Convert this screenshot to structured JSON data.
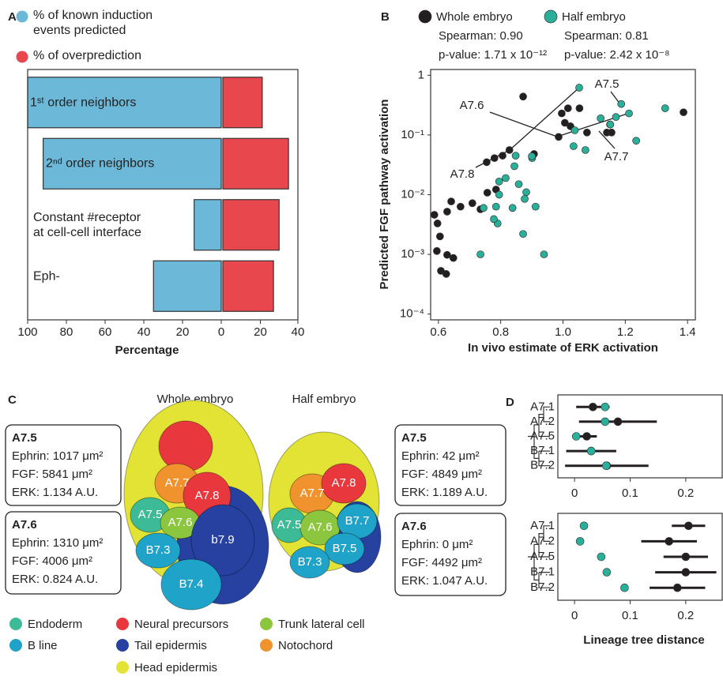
{
  "chart_data": [
    {
      "panel": "A",
      "type": "bar",
      "orientation": "horizontal",
      "categories": [
        "1ˢᵗ order neighbors",
        "2ⁿᵈ order neighbors",
        "Constant #receptor\nat cell-cell interface",
        "Eph-"
      ],
      "series": [
        {
          "name": "% of known induction events predicted",
          "color": "#6cb8d8",
          "axis": "x",
          "values": [
            100,
            92,
            14,
            35
          ]
        },
        {
          "name": "% of overprediction",
          "color": "#e8474d",
          "axis": "x2",
          "values": [
            21,
            35,
            30,
            27
          ]
        }
      ],
      "xlim": [
        100,
        0
      ],
      "xticks": [
        100,
        80,
        60,
        40,
        20,
        0
      ],
      "x2lim": [
        0,
        40
      ],
      "x2ticks": [
        20,
        40
      ],
      "xlabel": "Percentage"
    },
    {
      "panel": "B",
      "type": "scatter",
      "yscale": "log",
      "series": [
        {
          "name": "Whole embryo",
          "color": "#231f20",
          "stats": [
            "Spearman: 0.90",
            "p-value: 1.71 x 10⁻¹²"
          ],
          "x": [
            0.587,
            0.597,
            0.605,
            0.595,
            0.608,
            0.625,
            0.628,
            0.648,
            0.628,
            0.641,
            0.671,
            0.709,
            0.735,
            0.757,
            0.785,
            0.755,
            0.78,
            0.806,
            0.828,
            0.907,
            0.872,
            0.996,
            1.006,
            1.024,
            1.016,
            0.986,
            1.053,
            1.077,
            1.141,
            1.156,
            1.151,
            1.387
          ],
          "values": [
            0.0046,
            0.0033,
            0.002,
            0.00114,
            0.00053,
            0.00047,
            0.00098,
            0.00087,
            0.0052,
            0.0077,
            0.0063,
            0.0072,
            0.0057,
            0.0108,
            0.0122,
            0.035,
            0.041,
            0.045,
            0.056,
            0.048,
            0.44,
            0.23,
            0.16,
            0.14,
            0.28,
            0.093,
            0.28,
            0.11,
            0.11,
            0.11,
            0.15,
            0.24
          ]
        },
        {
          "name": "Half embryo",
          "color": "#2ab09a",
          "stats": [
            "Spearman: 0.81",
            "p-value: 2.42 x 10⁻⁸"
          ],
          "x": [
            1.052,
            1.17,
            1.187,
            1.212,
            1.152,
            1.121,
            1.038,
            1.034,
            1.072,
            1.235,
            1.328,
            0.901,
            0.9,
            0.844,
            0.848,
            0.795,
            0.816,
            0.858,
            0.882,
            0.877,
            0.795,
            0.785,
            0.745,
            0.838,
            0.79,
            0.912,
            0.872,
            0.735,
            0.939,
            0.778
          ],
          "values": [
            0.62,
            0.2,
            0.33,
            0.23,
            0.15,
            0.19,
            0.12,
            0.065,
            0.056,
            0.08,
            0.28,
            0.041,
            0.044,
            0.03,
            0.045,
            0.0166,
            0.019,
            0.015,
            0.011,
            0.0085,
            0.01,
            0.0063,
            0.006,
            0.006,
            0.0033,
            0.0063,
            0.0022,
            0.001,
            0.001,
            0.0039
          ]
        }
      ],
      "xlim": [
        0.575,
        1.425
      ],
      "ylim": [
        8e-05,
        1.25
      ],
      "xticks": [
        0.6,
        0.8,
        {
          "value": 1,
          "label": "1.0"
        },
        1.2,
        1.4
      ],
      "yticks": [
        1,
        {
          "value": 0.1,
          "label": "10⁻¹"
        },
        {
          "value": 0.01,
          "label": "10⁻²"
        },
        {
          "value": 0.001,
          "label": "10⁻³"
        },
        {
          "value": 0.0001,
          "label": "10⁻⁴"
        }
      ],
      "xlabel": "In vivo estimate of ERK activation",
      "ylabel": "Predicted  FGF pathway activation",
      "annotations": [
        "A7.6",
        "A7.5",
        "A7.8",
        "A7.7"
      ]
    },
    {
      "panel": "D",
      "type": "errorbar",
      "categories": [
        "A7.1",
        "A7.2",
        "A7.5",
        "B7.1",
        "B7.2"
      ],
      "series": [
        {
          "color": "#231f20",
          "values": [
            0.033,
            0.078,
            0.022,
            0.03,
            0.058
          ],
          "errors": [
            0.03,
            0.07,
            0.018,
            0.045,
            0.075
          ]
        },
        {
          "color": "#2ab09a",
          "values": [
            0.055,
            0.055,
            0.003,
            0.03,
            0.057
          ]
        }
      ],
      "xlim": [
        -0.03,
        0.267
      ],
      "xticks": [
        0,
        0.1,
        0.2
      ]
    },
    {
      "type": "errorbar",
      "categories": [
        "A7.1",
        "A7.2",
        "A7.5",
        "B7.1",
        "B7.2"
      ],
      "series": [
        {
          "color": "#231f20",
          "values": [
            0.205,
            0.17,
            0.2,
            0.2,
            0.185
          ],
          "errors": [
            0.03,
            0.05,
            0.04,
            0.055,
            0.05
          ]
        },
        {
          "color": "#2ab09a",
          "values": [
            0.017,
            0.01,
            0.048,
            0.058,
            0.09
          ]
        }
      ],
      "xlim": [
        -0.03,
        0.267
      ],
      "xticks": [
        0,
        0.1,
        0.2
      ],
      "xlabel": "Lineage tree distance"
    }
  ],
  "panel_c": {
    "label": "C",
    "embryos": [
      {
        "title": "Whole embryo",
        "cells": [
          "A7.7",
          "A7.8",
          "A7.5",
          "A7.6",
          "B7.3",
          "b7.9",
          "B7.4"
        ]
      },
      {
        "title": "Half embryo",
        "cells": [
          "A7.7",
          "A7.8",
          "A7.5",
          "A7.6",
          "B7.7",
          "B7.5",
          "B7.3"
        ]
      }
    ],
    "cards": [
      {
        "cell": "A7.5",
        "lines": [
          "Ephrin: 1017 μm²",
          "FGF: 5841 μm²",
          "ERK: 1.134 A.U."
        ]
      },
      {
        "cell": "A7.6",
        "lines": [
          "Ephrin: 1310 μm²",
          "FGF: 4006 μm²",
          "ERK: 0.824 A.U."
        ]
      },
      {
        "cell": "A7.5",
        "lines": [
          "Ephrin: 42 μm²",
          "FGF: 4849 μm²",
          "ERK: 1.189 A.U."
        ]
      },
      {
        "cell": "A7.6",
        "lines": [
          "Ephrin: 0 μm²",
          "FGF: 4492 μm²",
          "ERK: 1.047 A.U."
        ]
      }
    ],
    "tissues": [
      {
        "name": "Endoderm",
        "color": "#3dbb96"
      },
      {
        "name": "B line",
        "color": "#1fa3c8"
      },
      {
        "name": "Neural precursors",
        "color": "#e8383d"
      },
      {
        "name": "Tail epidermis",
        "color": "#2641a0"
      },
      {
        "name": "Head epidermis",
        "color": "#e3e335"
      },
      {
        "name": "Trunk lateral cell",
        "color": "#8cc63f"
      },
      {
        "name": "Notochord",
        "color": "#f0922e"
      }
    ]
  }
}
